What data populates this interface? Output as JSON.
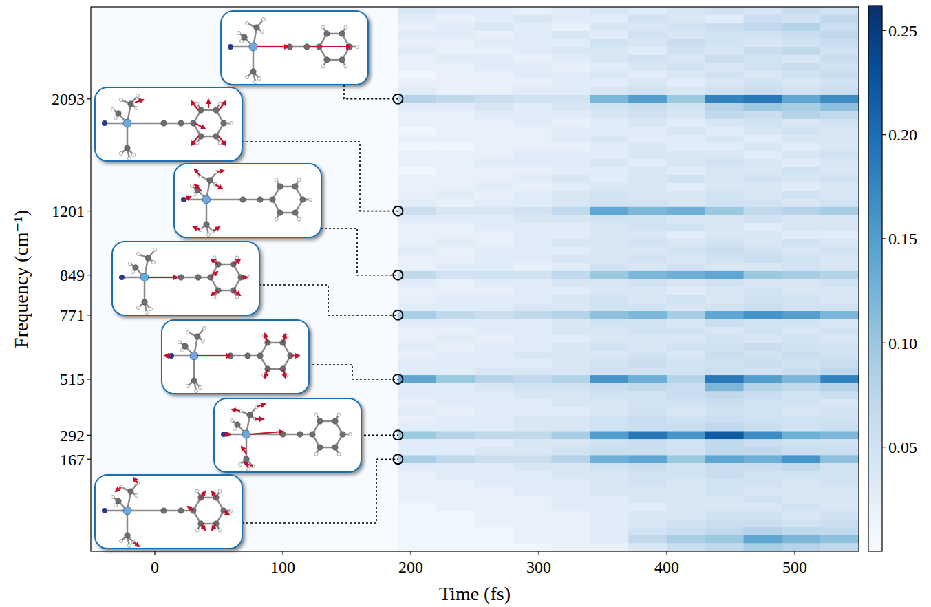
{
  "chart_data": {
    "type": "heatmap",
    "x_label": "Time (fs)",
    "y_label": "Frequency (cm⁻¹)",
    "xlim": [
      -50,
      550
    ],
    "xticks": [
      0,
      100,
      200,
      300,
      400,
      500
    ],
    "color_range": [
      0,
      0.262
    ],
    "color_ticks": [
      0.05,
      {
        "value": 0.1,
        "label": "0.10"
      },
      0.15,
      {
        "value": 0.2,
        "label": "0.20"
      },
      0.25
    ],
    "x": [
      190,
      220,
      250,
      280,
      310,
      340,
      370,
      400,
      430,
      460,
      490,
      520
    ],
    "categories": [
      null,
      null,
      null,
      null,
      null,
      null,
      null,
      null,
      null,
      null,
      null,
      "2093",
      null,
      null,
      null,
      null,
      null,
      null,
      null,
      null,
      null,
      null,
      null,
      null,
      null,
      "1201",
      null,
      null,
      null,
      null,
      null,
      null,
      null,
      "849",
      null,
      null,
      null,
      null,
      "771",
      null,
      null,
      null,
      null,
      null,
      null,
      null,
      "515",
      null,
      null,
      null,
      null,
      null,
      null,
      "292",
      null,
      null,
      "167",
      null,
      null,
      null,
      null,
      null,
      null,
      null,
      null,
      null,
      null,
      null
    ],
    "values": [
      [
        0.04,
        0.03,
        0.03,
        0.02,
        0.03,
        0.04,
        0.03,
        0.04,
        0.05,
        0.04,
        0.06,
        0.05
      ],
      [
        0.03,
        0.02,
        0.03,
        0.04,
        0.03,
        0.03,
        0.05,
        0.04,
        0.03,
        0.06,
        0.05,
        0.07
      ],
      [
        0.02,
        0.03,
        0.04,
        0.03,
        0.02,
        0.04,
        0.04,
        0.05,
        0.06,
        0.07,
        0.08,
        0.06
      ],
      [
        0.03,
        0.03,
        0.02,
        0.03,
        0.04,
        0.03,
        0.05,
        0.04,
        0.05,
        0.05,
        0.06,
        0.07
      ],
      [
        0.02,
        0.02,
        0.03,
        0.03,
        0.03,
        0.05,
        0.04,
        0.06,
        0.05,
        0.04,
        0.05,
        0.06
      ],
      [
        0.03,
        0.02,
        0.02,
        0.03,
        0.04,
        0.04,
        0.03,
        0.05,
        0.04,
        0.06,
        0.07,
        0.05
      ],
      [
        0.02,
        0.03,
        0.03,
        0.02,
        0.03,
        0.04,
        0.05,
        0.04,
        0.06,
        0.05,
        0.04,
        0.06
      ],
      [
        0.02,
        0.02,
        0.03,
        0.03,
        0.02,
        0.03,
        0.04,
        0.05,
        0.04,
        0.05,
        0.06,
        0.05
      ],
      [
        0.01,
        0.02,
        0.02,
        0.03,
        0.03,
        0.04,
        0.03,
        0.04,
        0.05,
        0.04,
        0.05,
        0.06
      ],
      [
        0.02,
        0.02,
        0.02,
        0.02,
        0.03,
        0.03,
        0.04,
        0.03,
        0.04,
        0.05,
        0.04,
        0.05
      ],
      [
        0.03,
        0.02,
        0.02,
        0.03,
        0.03,
        0.04,
        0.05,
        0.04,
        0.05,
        0.06,
        0.05,
        0.06
      ],
      [
        0.08,
        0.07,
        0.06,
        0.05,
        0.05,
        0.12,
        0.15,
        0.1,
        0.18,
        0.19,
        0.14,
        0.17
      ],
      [
        0.03,
        0.03,
        0.04,
        0.03,
        0.04,
        0.05,
        0.06,
        0.05,
        0.08,
        0.1,
        0.09,
        0.11
      ],
      [
        0.02,
        0.02,
        0.03,
        0.03,
        0.03,
        0.04,
        0.05,
        0.04,
        0.07,
        0.06,
        0.08,
        0.07
      ],
      [
        0.02,
        0.02,
        0.02,
        0.03,
        0.02,
        0.03,
        0.04,
        0.03,
        0.04,
        0.05,
        0.04,
        0.05
      ],
      [
        0.01,
        0.02,
        0.02,
        0.02,
        0.03,
        0.03,
        0.03,
        0.04,
        0.03,
        0.04,
        0.05,
        0.04
      ],
      [
        0.02,
        0.02,
        0.02,
        0.02,
        0.03,
        0.04,
        0.03,
        0.03,
        0.04,
        0.03,
        0.04,
        0.04
      ],
      [
        0.01,
        0.01,
        0.02,
        0.02,
        0.02,
        0.03,
        0.04,
        0.03,
        0.03,
        0.04,
        0.03,
        0.04
      ],
      [
        0.02,
        0.02,
        0.02,
        0.03,
        0.03,
        0.03,
        0.04,
        0.04,
        0.04,
        0.03,
        0.04,
        0.05
      ],
      [
        0.02,
        0.02,
        0.03,
        0.03,
        0.03,
        0.04,
        0.03,
        0.04,
        0.05,
        0.04,
        0.03,
        0.04
      ],
      [
        0.01,
        0.02,
        0.02,
        0.02,
        0.03,
        0.03,
        0.04,
        0.03,
        0.04,
        0.04,
        0.05,
        0.04
      ],
      [
        0.02,
        0.02,
        0.02,
        0.03,
        0.04,
        0.03,
        0.04,
        0.05,
        0.04,
        0.05,
        0.04,
        0.05
      ],
      [
        0.02,
        0.02,
        0.03,
        0.02,
        0.03,
        0.04,
        0.04,
        0.03,
        0.04,
        0.04,
        0.03,
        0.04
      ],
      [
        0.02,
        0.03,
        0.02,
        0.03,
        0.04,
        0.05,
        0.04,
        0.04,
        0.05,
        0.04,
        0.05,
        0.04
      ],
      [
        0.03,
        0.02,
        0.03,
        0.03,
        0.04,
        0.05,
        0.05,
        0.04,
        0.05,
        0.05,
        0.04,
        0.05
      ],
      [
        0.06,
        0.04,
        0.04,
        0.05,
        0.07,
        0.14,
        0.12,
        0.13,
        0.1,
        0.07,
        0.08,
        0.09
      ],
      [
        0.03,
        0.03,
        0.03,
        0.04,
        0.04,
        0.05,
        0.05,
        0.04,
        0.04,
        0.05,
        0.04,
        0.04
      ],
      [
        0.02,
        0.02,
        0.03,
        0.03,
        0.03,
        0.04,
        0.05,
        0.05,
        0.04,
        0.03,
        0.04,
        0.04
      ],
      [
        0.02,
        0.02,
        0.02,
        0.03,
        0.03,
        0.04,
        0.04,
        0.03,
        0.04,
        0.04,
        0.03,
        0.03
      ],
      [
        0.02,
        0.03,
        0.02,
        0.03,
        0.04,
        0.04,
        0.05,
        0.04,
        0.05,
        0.04,
        0.05,
        0.04
      ],
      [
        0.03,
        0.02,
        0.03,
        0.03,
        0.03,
        0.04,
        0.04,
        0.05,
        0.06,
        0.05,
        0.04,
        0.05
      ],
      [
        0.02,
        0.02,
        0.03,
        0.03,
        0.04,
        0.04,
        0.05,
        0.04,
        0.05,
        0.06,
        0.05,
        0.04
      ],
      [
        0.02,
        0.03,
        0.03,
        0.02,
        0.03,
        0.05,
        0.04,
        0.05,
        0.04,
        0.04,
        0.05,
        0.04
      ],
      [
        0.07,
        0.05,
        0.05,
        0.05,
        0.07,
        0.1,
        0.12,
        0.13,
        0.14,
        0.1,
        0.09,
        0.08
      ],
      [
        0.03,
        0.02,
        0.03,
        0.03,
        0.04,
        0.04,
        0.05,
        0.04,
        0.05,
        0.04,
        0.04,
        0.05
      ],
      [
        0.02,
        0.02,
        0.02,
        0.03,
        0.03,
        0.04,
        0.04,
        0.03,
        0.04,
        0.05,
        0.04,
        0.04
      ],
      [
        0.02,
        0.03,
        0.03,
        0.03,
        0.04,
        0.05,
        0.04,
        0.05,
        0.04,
        0.05,
        0.05,
        0.04
      ],
      [
        0.03,
        0.03,
        0.03,
        0.04,
        0.04,
        0.05,
        0.05,
        0.04,
        0.05,
        0.06,
        0.05,
        0.05
      ],
      [
        0.09,
        0.07,
        0.06,
        0.07,
        0.08,
        0.11,
        0.12,
        0.09,
        0.14,
        0.16,
        0.15,
        0.12
      ],
      [
        0.03,
        0.03,
        0.03,
        0.03,
        0.04,
        0.05,
        0.05,
        0.04,
        0.06,
        0.05,
        0.05,
        0.04
      ],
      [
        0.02,
        0.02,
        0.03,
        0.03,
        0.04,
        0.04,
        0.05,
        0.05,
        0.04,
        0.05,
        0.04,
        0.05
      ],
      [
        0.02,
        0.03,
        0.02,
        0.03,
        0.03,
        0.04,
        0.04,
        0.04,
        0.05,
        0.04,
        0.05,
        0.04
      ],
      [
        0.03,
        0.02,
        0.03,
        0.03,
        0.04,
        0.05,
        0.04,
        0.05,
        0.05,
        0.06,
        0.05,
        0.05
      ],
      [
        0.02,
        0.03,
        0.03,
        0.04,
        0.04,
        0.04,
        0.05,
        0.04,
        0.06,
        0.05,
        0.06,
        0.05
      ],
      [
        0.03,
        0.03,
        0.03,
        0.03,
        0.04,
        0.05,
        0.06,
        0.05,
        0.05,
        0.06,
        0.05,
        0.06
      ],
      [
        0.03,
        0.03,
        0.04,
        0.04,
        0.04,
        0.05,
        0.05,
        0.05,
        0.06,
        0.05,
        0.06,
        0.07
      ],
      [
        0.14,
        0.1,
        0.08,
        0.07,
        0.08,
        0.16,
        0.13,
        0.08,
        0.19,
        0.15,
        0.12,
        0.18
      ],
      [
        0.03,
        0.03,
        0.04,
        0.05,
        0.05,
        0.06,
        0.07,
        0.06,
        0.12,
        0.08,
        0.07,
        0.08
      ],
      [
        0.03,
        0.03,
        0.03,
        0.04,
        0.04,
        0.05,
        0.05,
        0.06,
        0.07,
        0.06,
        0.05,
        0.06
      ],
      [
        0.02,
        0.03,
        0.03,
        0.03,
        0.04,
        0.04,
        0.05,
        0.05,
        0.06,
        0.05,
        0.05,
        0.04
      ],
      [
        0.03,
        0.02,
        0.03,
        0.03,
        0.03,
        0.04,
        0.05,
        0.04,
        0.05,
        0.05,
        0.04,
        0.05
      ],
      [
        0.02,
        0.03,
        0.03,
        0.04,
        0.04,
        0.05,
        0.06,
        0.05,
        0.06,
        0.05,
        0.05,
        0.05
      ],
      [
        0.03,
        0.03,
        0.03,
        0.04,
        0.04,
        0.05,
        0.06,
        0.06,
        0.07,
        0.06,
        0.05,
        0.06
      ],
      [
        0.1,
        0.08,
        0.07,
        0.07,
        0.09,
        0.15,
        0.19,
        0.16,
        0.22,
        0.17,
        0.13,
        0.12
      ],
      [
        0.03,
        0.03,
        0.03,
        0.04,
        0.04,
        0.05,
        0.06,
        0.05,
        0.07,
        0.06,
        0.05,
        0.05
      ],
      [
        0.03,
        0.03,
        0.04,
        0.04,
        0.05,
        0.06,
        0.06,
        0.05,
        0.07,
        0.07,
        0.06,
        0.06
      ],
      [
        0.09,
        0.07,
        0.06,
        0.06,
        0.08,
        0.13,
        0.14,
        0.1,
        0.14,
        0.13,
        0.16,
        0.11
      ],
      [
        0.03,
        0.03,
        0.03,
        0.04,
        0.04,
        0.05,
        0.06,
        0.05,
        0.06,
        0.06,
        0.07,
        0.05
      ],
      [
        0.02,
        0.03,
        0.03,
        0.03,
        0.04,
        0.04,
        0.05,
        0.05,
        0.06,
        0.05,
        0.05,
        0.05
      ],
      [
        0.02,
        0.02,
        0.03,
        0.03,
        0.03,
        0.04,
        0.05,
        0.04,
        0.05,
        0.05,
        0.04,
        0.05
      ],
      [
        0.02,
        0.02,
        0.02,
        0.03,
        0.03,
        0.04,
        0.04,
        0.04,
        0.05,
        0.04,
        0.04,
        0.04
      ],
      [
        0.02,
        0.02,
        0.02,
        0.02,
        0.03,
        0.03,
        0.04,
        0.04,
        0.04,
        0.05,
        0.04,
        0.04
      ],
      [
        0.01,
        0.02,
        0.02,
        0.02,
        0.03,
        0.03,
        0.03,
        0.04,
        0.04,
        0.04,
        0.05,
        0.04
      ],
      [
        0.01,
        0.01,
        0.02,
        0.02,
        0.02,
        0.03,
        0.04,
        0.04,
        0.05,
        0.05,
        0.04,
        0.05
      ],
      [
        0.01,
        0.01,
        0.02,
        0.02,
        0.02,
        0.03,
        0.04,
        0.05,
        0.06,
        0.06,
        0.05,
        0.06
      ],
      [
        0.01,
        0.01,
        0.01,
        0.02,
        0.02,
        0.03,
        0.05,
        0.06,
        0.07,
        0.08,
        0.07,
        0.07
      ],
      [
        0.01,
        0.01,
        0.01,
        0.02,
        0.02,
        0.03,
        0.07,
        0.09,
        0.1,
        0.14,
        0.12,
        0.11
      ],
      [
        0.01,
        0.01,
        0.01,
        0.01,
        0.02,
        0.02,
        0.04,
        0.06,
        0.07,
        0.09,
        0.08,
        0.07
      ]
    ]
  }
}
